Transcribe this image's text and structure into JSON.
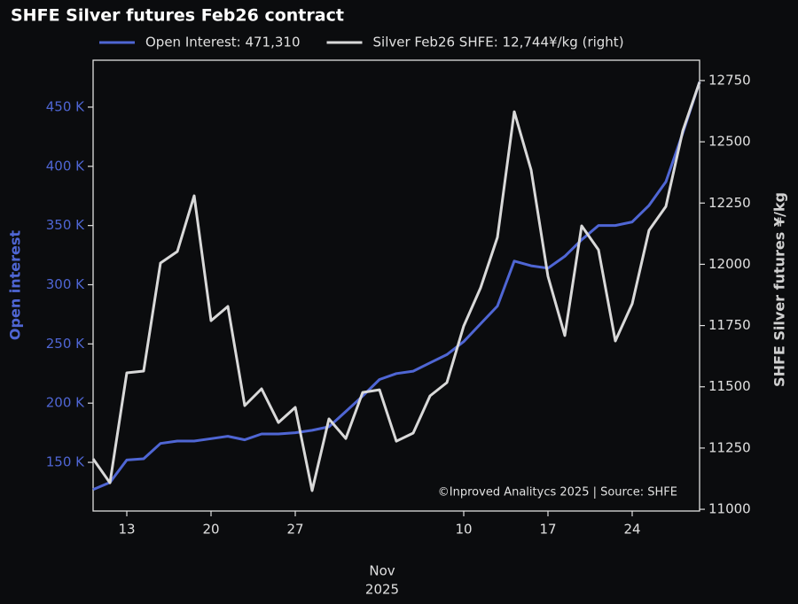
{
  "chart_data": {
    "type": "line",
    "title": "SHFE Silver futures Feb26 contract",
    "annotation": "©Inproved Analitycs 2025 | Source: SHFE",
    "ylabel": "Open interest",
    "y2label": "SHFE Silver futures ¥/kg",
    "xlabel": [
      "Nov",
      "2025"
    ],
    "categories": [
      null,
      null,
      "13",
      null,
      null,
      null,
      null,
      "20",
      null,
      null,
      null,
      null,
      "27",
      null,
      null,
      null,
      null,
      null,
      null,
      null,
      null,
      null,
      "10",
      null,
      null,
      null,
      null,
      "17",
      null,
      null,
      null,
      null,
      "24",
      null,
      null,
      null,
      null
    ],
    "series": [
      {
        "name": "Open Interest: 471,310",
        "color": "#4f66d4",
        "axis": "y",
        "values": [
          127,
          133,
          152,
          153,
          166,
          168,
          168,
          170,
          172,
          169,
          174,
          174,
          175,
          177,
          180,
          193,
          206,
          220,
          225,
          227,
          234,
          241,
          252,
          267,
          282,
          320,
          316,
          314,
          324,
          338,
          350,
          350,
          353,
          367,
          387,
          428,
          471.31
        ]
      },
      {
        "name": "Silver Feb26 SHFE: 12,744¥/kg (right)",
        "color": "#d9d9d9",
        "axis": "y2",
        "values": [
          11206,
          11108,
          11557,
          11564,
          12005,
          12052,
          12280,
          11770,
          11828,
          11423,
          11492,
          11354,
          11416,
          11076,
          11369,
          11289,
          11477,
          11488,
          11278,
          11311,
          11463,
          11517,
          11748,
          11904,
          12110,
          12623,
          12385,
          11951,
          11709,
          12157,
          12059,
          11687,
          11839,
          12139,
          12236,
          12544,
          12744
        ]
      }
    ],
    "ylim": [
      108.9,
      489.6
    ],
    "yticks": [
      {
        "value": 150,
        "label": "150 K"
      },
      {
        "value": 200,
        "label": "200 K"
      },
      {
        "value": 250,
        "label": "250 K"
      },
      {
        "value": 300,
        "label": "300 K"
      },
      {
        "value": 350,
        "label": "350 K"
      },
      {
        "value": 400,
        "label": "400 K"
      },
      {
        "value": 450,
        "label": "450 K"
      }
    ],
    "y2lim": [
      10993,
      12833
    ],
    "y2ticks": [
      11000,
      11250,
      11500,
      11750,
      12000,
      12250,
      12500,
      12750
    ],
    "grid": false
  }
}
